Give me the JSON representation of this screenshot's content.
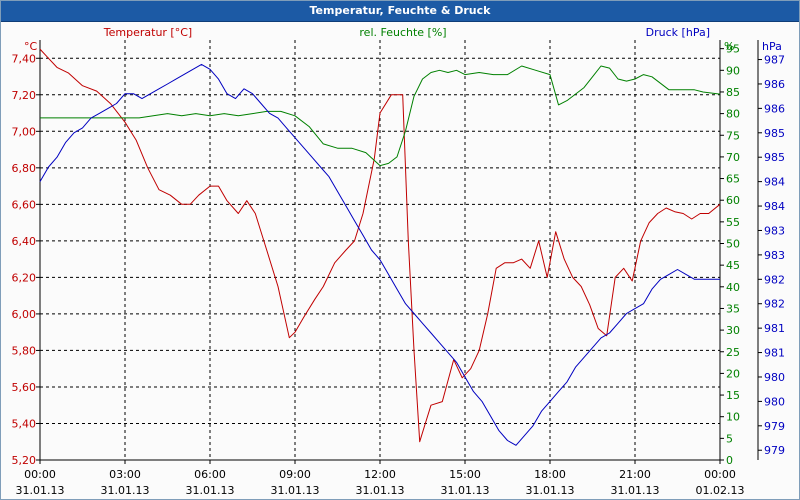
{
  "window": {
    "title": "Temperatur, Feuchte & Druck"
  },
  "colors": {
    "temperature": "#c00000",
    "humidity": "#008000",
    "pressure": "#0000c0",
    "grid": "#000000",
    "axis_text": "#000000"
  },
  "chart_data": {
    "type": "line",
    "title": "Temperatur, Feuchte & Druck",
    "x_ticks": [
      {
        "time": "00:00",
        "date": "31.01.13",
        "hour": 0
      },
      {
        "time": "03:00",
        "date": "31.01.13",
        "hour": 3
      },
      {
        "time": "06:00",
        "date": "31.01.13",
        "hour": 6
      },
      {
        "time": "09:00",
        "date": "31.01.13",
        "hour": 9
      },
      {
        "time": "12:00",
        "date": "31.01.13",
        "hour": 12
      },
      {
        "time": "15:00",
        "date": "31.01.13",
        "hour": 15
      },
      {
        "time": "18:00",
        "date": "31.01.13",
        "hour": 18
      },
      {
        "time": "21:00",
        "date": "31.01.13",
        "hour": 21
      },
      {
        "time": "00:00",
        "date": "01.02.13",
        "hour": 24
      }
    ],
    "xlim": [
      0,
      24
    ],
    "axes": {
      "temperature": {
        "label": "Temperatur [°C]",
        "unit": "°C",
        "ylim": [
          5.2,
          7.5
        ],
        "ticks": [
          "7,40",
          "7,20",
          "7,00",
          "6,80",
          "6,60",
          "6,40",
          "6,20",
          "6,00",
          "5,80",
          "5,60",
          "5,40",
          "5,20"
        ],
        "tick_values": [
          7.4,
          7.2,
          7.0,
          6.8,
          6.6,
          6.4,
          6.2,
          6.0,
          5.8,
          5.6,
          5.4,
          5.2
        ]
      },
      "humidity": {
        "label": "rel. Feuchte [%]",
        "unit": "%",
        "ylim": [
          0,
          97
        ],
        "ticks": [
          "95",
          "90",
          "85",
          "80",
          "75",
          "70",
          "65",
          "60",
          "55",
          "50",
          "45",
          "40",
          "35",
          "30",
          "25",
          "20",
          "15",
          "10",
          "5",
          "0"
        ],
        "tick_values": [
          95,
          90,
          85,
          80,
          75,
          70,
          65,
          60,
          55,
          50,
          45,
          40,
          35,
          30,
          25,
          20,
          15,
          10,
          5,
          0
        ]
      },
      "pressure": {
        "label": "Druck [hPa]",
        "unit": "hPa",
        "ylim": [
          978.8,
          987.4
        ],
        "ticks": [
          "987",
          "986",
          "986",
          "985",
          "985",
          "984",
          "984",
          "983",
          "983",
          "982",
          "982",
          "981",
          "981",
          "980",
          "980",
          "979",
          "979"
        ],
        "tick_values": [
          987.0,
          986.5,
          986.0,
          985.5,
          985.0,
          984.5,
          984.0,
          983.5,
          983.0,
          982.5,
          982.0,
          981.5,
          981.0,
          980.5,
          980.0,
          979.5,
          979.0
        ]
      }
    },
    "series": [
      {
        "name": "Temperatur [°C]",
        "axis": "temperature",
        "x": [
          0,
          0.3,
          0.6,
          1,
          1.5,
          2,
          2.5,
          3,
          3.4,
          3.8,
          4.2,
          4.6,
          5,
          5.3,
          5.6,
          6,
          6.3,
          6.6,
          7,
          7.3,
          7.6,
          8,
          8.4,
          8.8,
          9,
          9.3,
          9.7,
          10,
          10.4,
          10.8,
          11.1,
          11.4,
          11.8,
          12,
          12.4,
          12.8,
          13,
          13.2,
          13.4,
          13.6,
          13.8,
          14.2,
          14.6,
          14.9,
          15.2,
          15.5,
          15.8,
          16.1,
          16.4,
          16.7,
          17,
          17.3,
          17.6,
          17.9,
          18.2,
          18.5,
          18.8,
          19.1,
          19.4,
          19.7,
          20,
          20.3,
          20.6,
          20.9,
          21.2,
          21.5,
          21.8,
          22.1,
          22.4,
          22.7,
          23,
          23.3,
          23.6,
          24
        ],
        "values": [
          7.45,
          7.4,
          7.35,
          7.32,
          7.25,
          7.22,
          7.15,
          7.05,
          6.95,
          6.8,
          6.68,
          6.65,
          6.6,
          6.6,
          6.65,
          6.7,
          6.7,
          6.62,
          6.55,
          6.62,
          6.55,
          6.35,
          6.15,
          5.87,
          5.9,
          5.98,
          6.08,
          6.15,
          6.28,
          6.35,
          6.4,
          6.55,
          6.85,
          7.1,
          7.2,
          7.2,
          6.4,
          5.8,
          5.3,
          5.4,
          5.5,
          5.52,
          5.75,
          5.65,
          5.7,
          5.8,
          6.0,
          6.25,
          6.28,
          6.28,
          6.3,
          6.25,
          6.4,
          6.2,
          6.45,
          6.3,
          6.2,
          6.15,
          6.05,
          5.92,
          5.88,
          6.2,
          6.25,
          6.18,
          6.4,
          6.5,
          6.55,
          6.58,
          6.56,
          6.55,
          6.52,
          6.55,
          6.55,
          6.6
        ]
      },
      {
        "name": "rel. Feuchte [%]",
        "axis": "humidity",
        "x": [
          0,
          0.5,
          1,
          1.5,
          2,
          2.5,
          3,
          3.5,
          4,
          4.5,
          5,
          5.5,
          6,
          6.5,
          7,
          7.5,
          8,
          8.5,
          9,
          9.5,
          10,
          10.5,
          11,
          11.5,
          12,
          12.3,
          12.6,
          12.9,
          13.2,
          13.5,
          13.8,
          14.1,
          14.4,
          14.7,
          15,
          15.5,
          16,
          16.5,
          17,
          17.5,
          18,
          18.3,
          18.6,
          18.9,
          19.2,
          19.5,
          19.8,
          20.1,
          20.4,
          20.7,
          21,
          21.3,
          21.6,
          21.9,
          22.2,
          22.5,
          22.8,
          23.1,
          23.4,
          24
        ],
        "values": [
          79,
          79,
          79,
          79,
          79,
          79,
          79,
          79,
          79.5,
          80,
          79.5,
          80,
          79.5,
          80,
          79.5,
          80,
          80.5,
          80.5,
          79.5,
          77,
          73,
          72,
          72,
          71,
          68,
          68.5,
          70,
          76,
          84,
          88,
          89.5,
          90,
          89.5,
          90,
          89,
          89.5,
          89,
          89,
          91,
          90,
          89,
          82,
          83,
          84.5,
          86,
          88.5,
          91,
          90.5,
          88,
          87.5,
          88,
          89,
          88.5,
          87,
          85.5,
          85.5,
          85.5,
          85.5,
          85,
          84.5
        ]
      },
      {
        "name": "Druck [hPa]",
        "axis": "pressure",
        "x": [
          0,
          0.3,
          0.6,
          0.9,
          1.2,
          1.5,
          1.8,
          2.1,
          2.4,
          2.7,
          3,
          3.3,
          3.6,
          3.9,
          4.2,
          4.5,
          4.8,
          5.1,
          5.4,
          5.7,
          6,
          6.3,
          6.6,
          6.9,
          7.2,
          7.5,
          7.8,
          8.1,
          8.4,
          8.7,
          9,
          9.3,
          9.6,
          9.9,
          10.2,
          10.5,
          10.8,
          11.1,
          11.4,
          11.7,
          12,
          12.3,
          12.6,
          12.9,
          13.2,
          13.5,
          13.8,
          14.1,
          14.4,
          14.7,
          15,
          15.3,
          15.6,
          15.9,
          16.2,
          16.5,
          16.8,
          17.1,
          17.4,
          17.7,
          18,
          18.3,
          18.6,
          18.9,
          19.2,
          19.5,
          19.8,
          20.1,
          20.4,
          20.7,
          21,
          21.3,
          21.6,
          21.9,
          22.2,
          22.5,
          22.8,
          23.1,
          23.4,
          24
        ],
        "values": [
          984.5,
          984.8,
          985.0,
          985.3,
          985.5,
          985.6,
          985.8,
          985.9,
          986.0,
          986.1,
          986.3,
          986.3,
          986.2,
          986.3,
          986.4,
          986.5,
          986.6,
          986.7,
          986.8,
          986.9,
          986.8,
          986.6,
          986.3,
          986.2,
          986.4,
          986.3,
          986.1,
          985.9,
          985.8,
          985.6,
          985.4,
          985.2,
          985.0,
          984.8,
          984.6,
          984.3,
          984.0,
          983.7,
          983.4,
          983.1,
          982.9,
          982.6,
          982.3,
          982.0,
          981.8,
          981.6,
          981.4,
          981.2,
          981.0,
          980.8,
          980.5,
          980.2,
          980.0,
          979.7,
          979.4,
          979.2,
          979.1,
          979.3,
          979.5,
          979.8,
          980.0,
          980.2,
          980.4,
          980.7,
          980.9,
          981.1,
          981.3,
          981.4,
          981.6,
          981.8,
          981.9,
          982.0,
          982.3,
          982.5,
          982.6,
          982.7,
          982.6,
          982.5,
          982.5,
          982.5
        ]
      }
    ]
  }
}
